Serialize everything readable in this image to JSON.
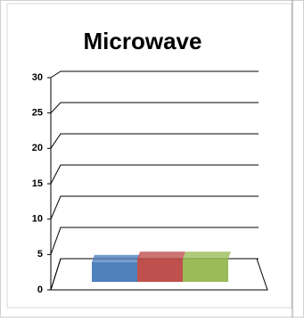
{
  "chart_data": {
    "type": "bar",
    "title": "Microwave",
    "categories": [
      null,
      null,
      null
    ],
    "values": [
      3,
      3.5,
      3.5
    ],
    "colors": [
      "#4f81bd",
      "#c0504d",
      "#9bbb59"
    ],
    "ylim": [
      0,
      30
    ],
    "yticks": [
      0,
      5,
      10,
      15,
      20,
      25,
      30
    ],
    "grid": true
  }
}
